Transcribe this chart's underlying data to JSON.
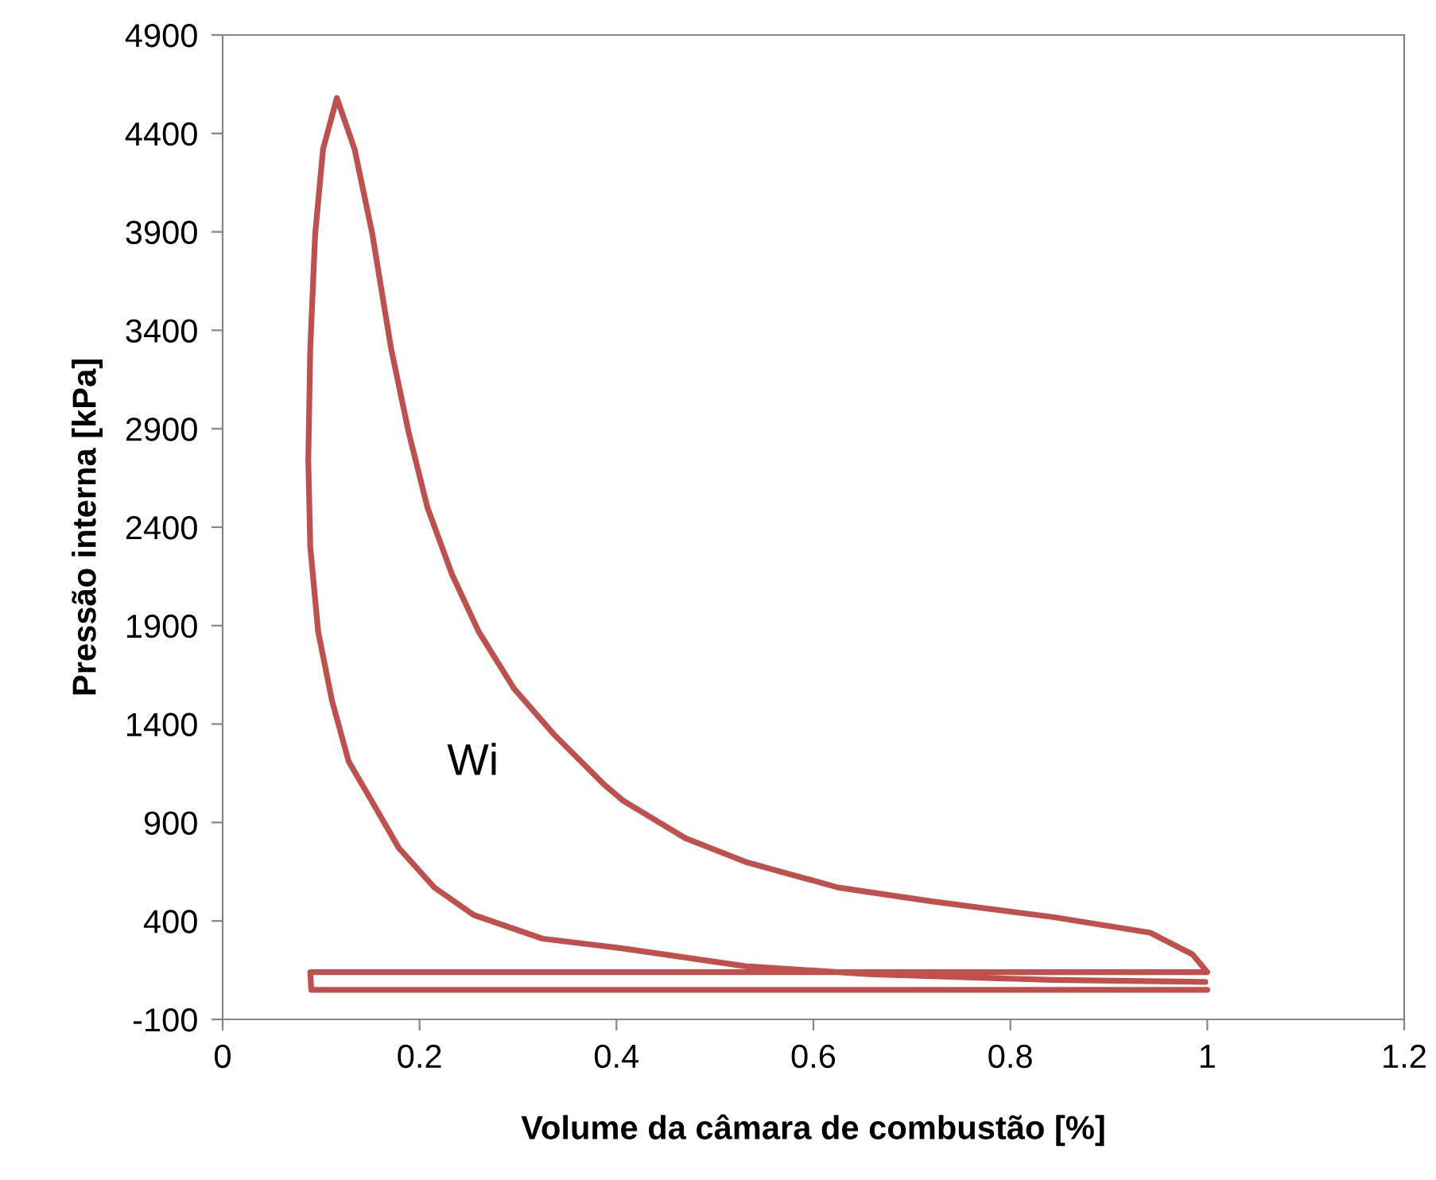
{
  "chart_data": {
    "type": "line",
    "xlabel": "Volume da câmara de combustão [%]",
    "ylabel": "Pressão interna [kPa]",
    "series": [
      {
        "color": "#c0504d",
        "x": [
          0.998,
          0.843,
          0.656,
          0.531,
          0.407,
          0.325,
          0.255,
          0.215,
          0.179,
          0.149,
          0.128,
          0.111,
          0.097,
          0.089,
          0.087,
          0.089,
          0.094,
          0.102,
          0.116,
          0.134,
          0.152,
          0.171,
          0.189,
          0.208,
          0.233,
          0.26,
          0.296,
          0.336,
          0.388,
          0.407,
          0.47,
          0.531,
          0.625,
          0.719,
          0.843,
          0.942,
          0.985,
          1.0,
          0.5,
          0.089,
          0.09,
          0.5,
          1.0
        ],
        "values": [
          90,
          100,
          130,
          170,
          260,
          310,
          430,
          570,
          770,
          1030,
          1210,
          1520,
          1870,
          2300,
          2740,
          3310,
          3890,
          4320,
          4580,
          4320,
          3890,
          3310,
          2880,
          2500,
          2160,
          1870,
          1580,
          1350,
          1090,
          1010,
          820,
          700,
          570,
          500,
          420,
          340,
          230,
          140,
          140,
          140,
          50,
          50,
          50
        ]
      }
    ],
    "xlim": [
      0,
      1.2
    ],
    "xticks": [
      0,
      0.2,
      0.4,
      0.6,
      0.8,
      1,
      1.2
    ],
    "ylim": [
      -100,
      4900
    ],
    "yticks": [
      -100,
      400,
      900,
      1400,
      1900,
      2400,
      2900,
      3400,
      3900,
      4400,
      4900
    ],
    "annotations": [
      "Wi"
    ],
    "grid": false,
    "legend": false,
    "marker": "none",
    "line_style": "solid"
  }
}
